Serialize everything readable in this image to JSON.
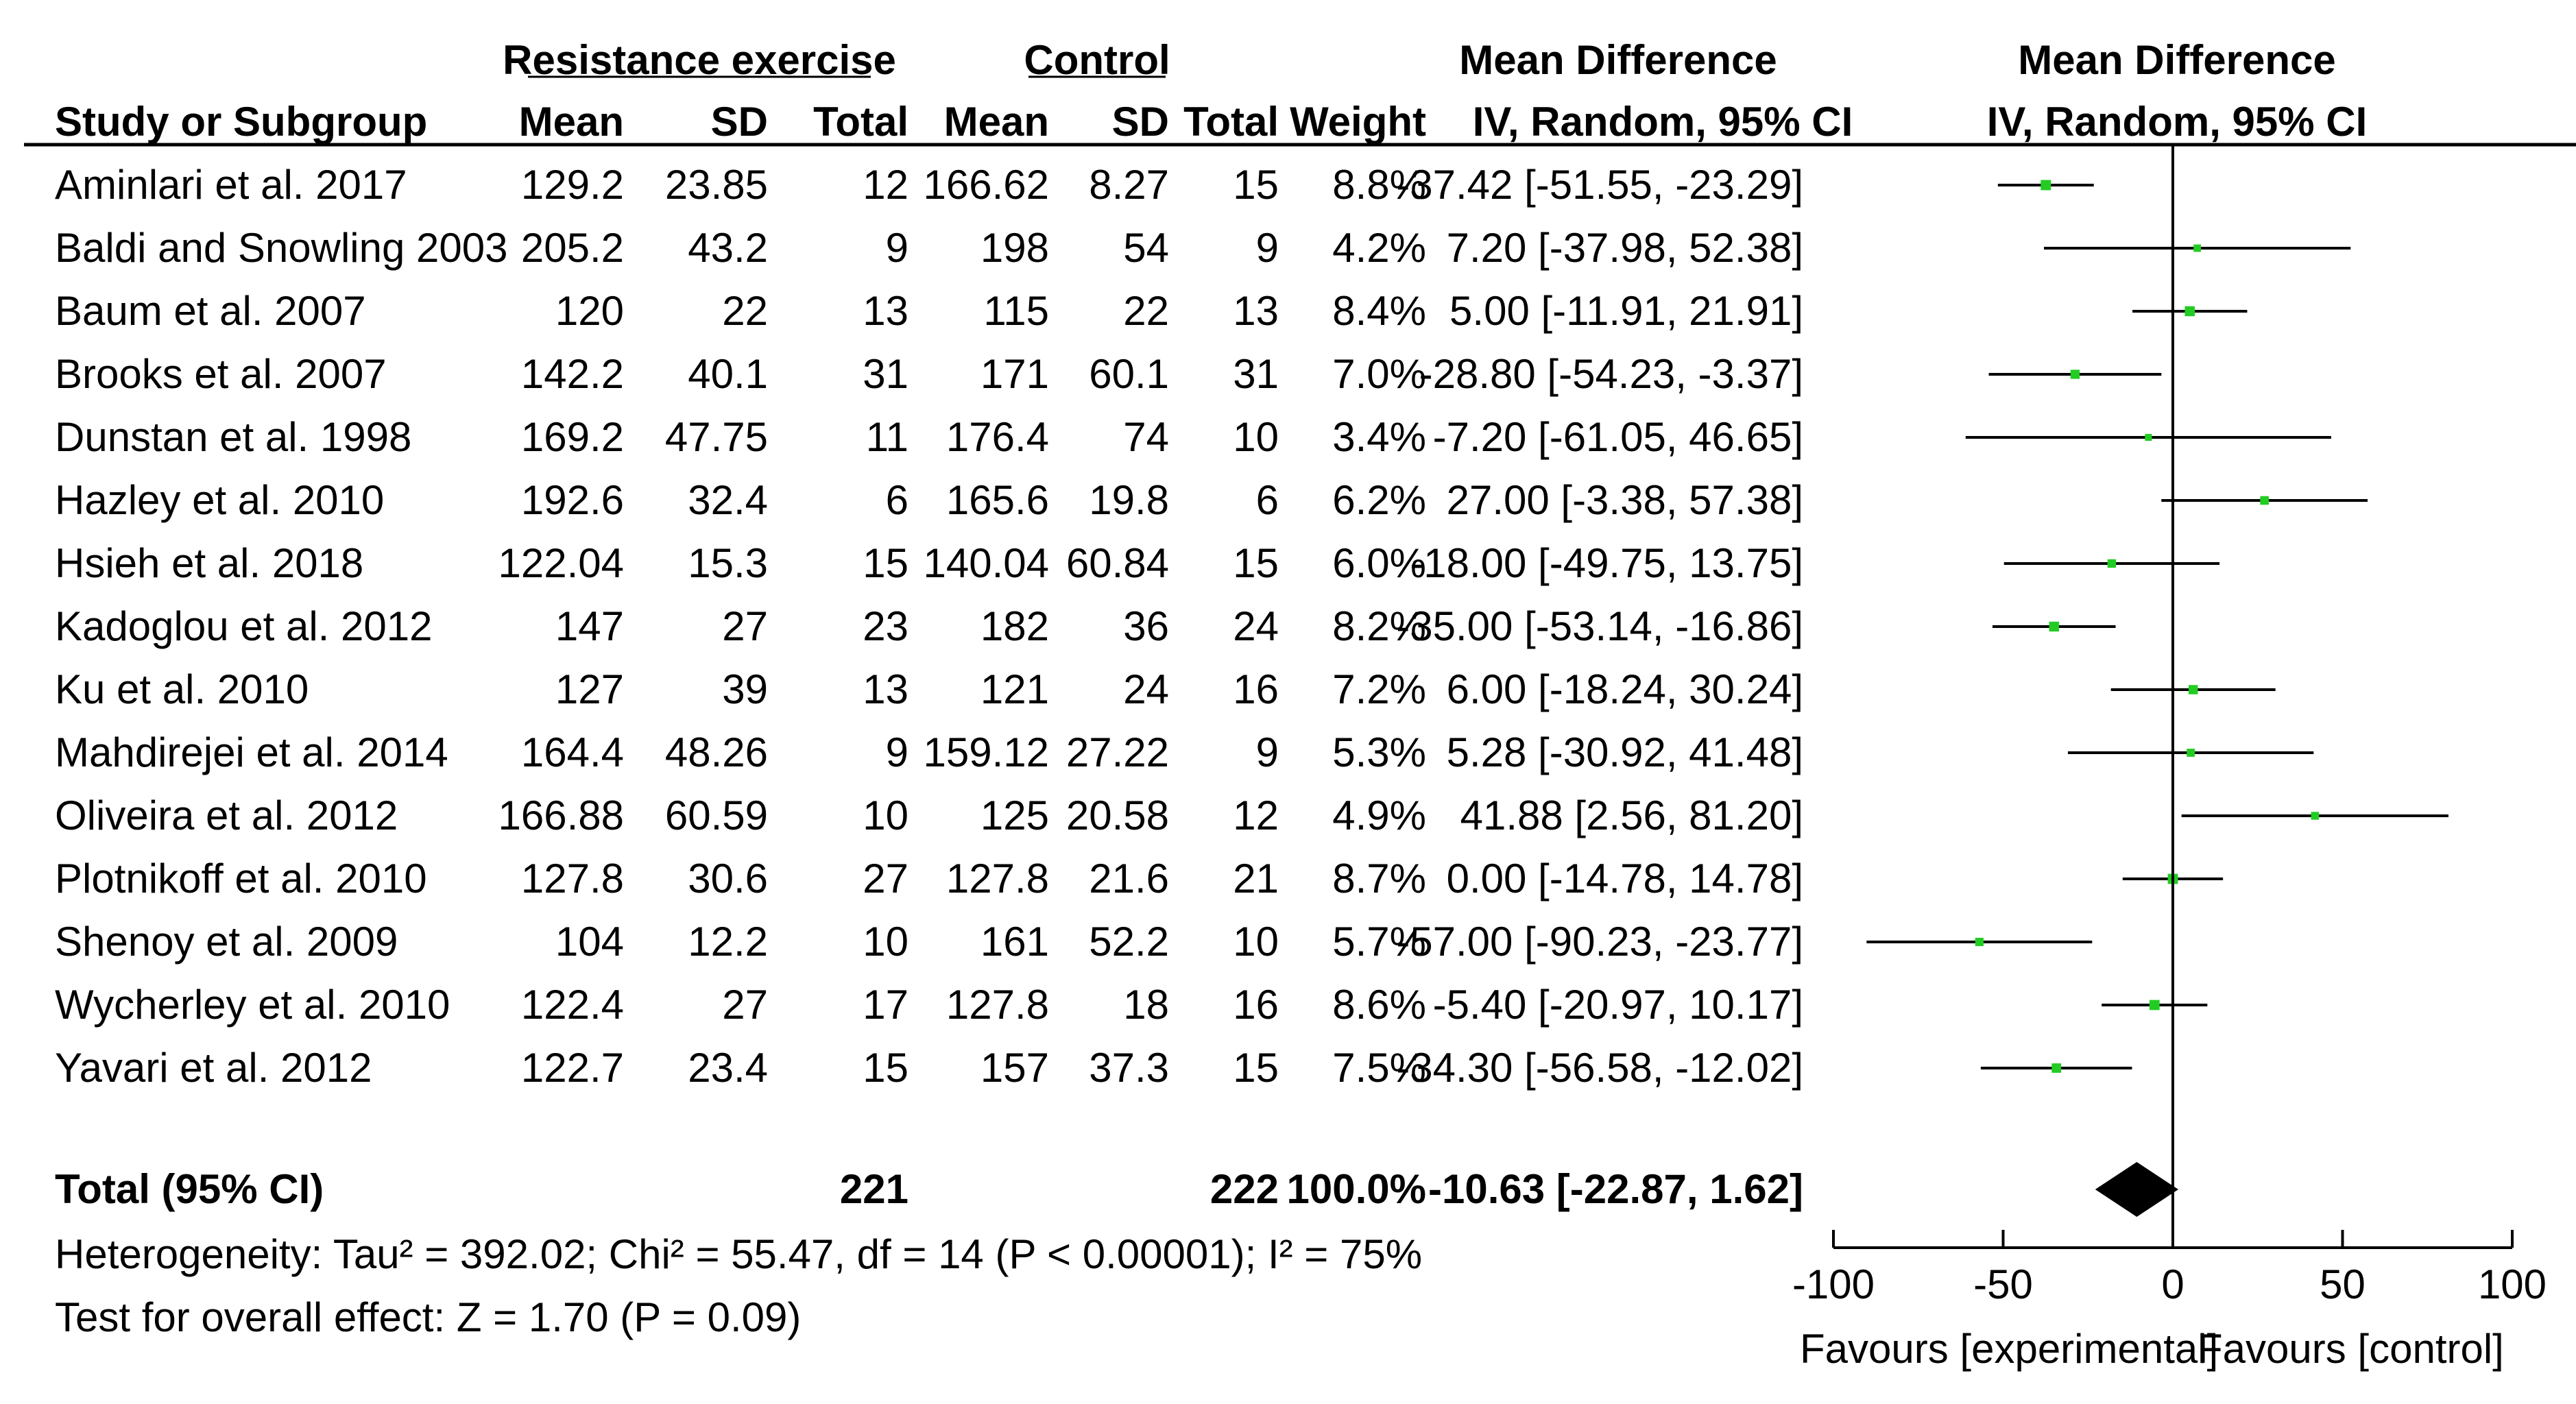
{
  "chart_data": {
    "type": "forest",
    "headers": {
      "group1": "Resistance exercise",
      "group2": "Control",
      "effect_col": "Mean Difference",
      "effect_col_sub": "IV, Random, 95% CI",
      "plot_title": "Mean Difference",
      "plot_sub": "IV, Random, 95% CI",
      "study": "Study or Subgroup",
      "mean": "Mean",
      "sd": "SD",
      "total": "Total",
      "weight": "Weight"
    },
    "studies": [
      {
        "name": "Aminlari et al. 2017",
        "m1": "129.2",
        "sd1": "23.85",
        "n1": "12",
        "m2": "166.62",
        "sd2": "8.27",
        "n2": "15",
        "weight": "8.8%",
        "ci_text": "-37.42 [-51.55, -23.29]",
        "md": -37.42,
        "lo": -51.55,
        "hi": -23.29
      },
      {
        "name": "Baldi and Snowling 2003",
        "m1": "205.2",
        "sd1": "43.2",
        "n1": "9",
        "m2": "198",
        "sd2": "54",
        "n2": "9",
        "weight": "4.2%",
        "ci_text": "7.20 [-37.98, 52.38]",
        "md": 7.2,
        "lo": -37.98,
        "hi": 52.38
      },
      {
        "name": "Baum et al. 2007",
        "m1": "120",
        "sd1": "22",
        "n1": "13",
        "m2": "115",
        "sd2": "22",
        "n2": "13",
        "weight": "8.4%",
        "ci_text": "5.00 [-11.91, 21.91]",
        "md": 5.0,
        "lo": -11.91,
        "hi": 21.91
      },
      {
        "name": "Brooks et al. 2007",
        "m1": "142.2",
        "sd1": "40.1",
        "n1": "31",
        "m2": "171",
        "sd2": "60.1",
        "n2": "31",
        "weight": "7.0%",
        "ci_text": "-28.80 [-54.23, -3.37]",
        "md": -28.8,
        "lo": -54.23,
        "hi": -3.37
      },
      {
        "name": "Dunstan et al. 1998",
        "m1": "169.2",
        "sd1": "47.75",
        "n1": "11",
        "m2": "176.4",
        "sd2": "74",
        "n2": "10",
        "weight": "3.4%",
        "ci_text": "-7.20 [-61.05, 46.65]",
        "md": -7.2,
        "lo": -61.05,
        "hi": 46.65
      },
      {
        "name": "Hazley et al. 2010",
        "m1": "192.6",
        "sd1": "32.4",
        "n1": "6",
        "m2": "165.6",
        "sd2": "19.8",
        "n2": "6",
        "weight": "6.2%",
        "ci_text": "27.00 [-3.38, 57.38]",
        "md": 27.0,
        "lo": -3.38,
        "hi": 57.38
      },
      {
        "name": "Hsieh et al. 2018",
        "m1": "122.04",
        "sd1": "15.3",
        "n1": "15",
        "m2": "140.04",
        "sd2": "60.84",
        "n2": "15",
        "weight": "6.0%",
        "ci_text": "-18.00 [-49.75, 13.75]",
        "md": -18.0,
        "lo": -49.75,
        "hi": 13.75
      },
      {
        "name": "Kadoglou et al. 2012",
        "m1": "147",
        "sd1": "27",
        "n1": "23",
        "m2": "182",
        "sd2": "36",
        "n2": "24",
        "weight": "8.2%",
        "ci_text": "-35.00 [-53.14, -16.86]",
        "md": -35.0,
        "lo": -53.14,
        "hi": -16.86
      },
      {
        "name": "Ku et al. 2010",
        "m1": "127",
        "sd1": "39",
        "n1": "13",
        "m2": "121",
        "sd2": "24",
        "n2": "16",
        "weight": "7.2%",
        "ci_text": "6.00 [-18.24, 30.24]",
        "md": 6.0,
        "lo": -18.24,
        "hi": 30.24
      },
      {
        "name": "Mahdirejei et al. 2014",
        "m1": "164.4",
        "sd1": "48.26",
        "n1": "9",
        "m2": "159.12",
        "sd2": "27.22",
        "n2": "9",
        "weight": "5.3%",
        "ci_text": "5.28 [-30.92, 41.48]",
        "md": 5.28,
        "lo": -30.92,
        "hi": 41.48
      },
      {
        "name": "Oliveira et al. 2012",
        "m1": "166.88",
        "sd1": "60.59",
        "n1": "10",
        "m2": "125",
        "sd2": "20.58",
        "n2": "12",
        "weight": "4.9%",
        "ci_text": "41.88 [2.56, 81.20]",
        "md": 41.88,
        "lo": 2.56,
        "hi": 81.2
      },
      {
        "name": "Plotnikoff et al. 2010",
        "m1": "127.8",
        "sd1": "30.6",
        "n1": "27",
        "m2": "127.8",
        "sd2": "21.6",
        "n2": "21",
        "weight": "8.7%",
        "ci_text": "0.00 [-14.78, 14.78]",
        "md": 0.0,
        "lo": -14.78,
        "hi": 14.78
      },
      {
        "name": "Shenoy et al. 2009",
        "m1": "104",
        "sd1": "12.2",
        "n1": "10",
        "m2": "161",
        "sd2": "52.2",
        "n2": "10",
        "weight": "5.7%",
        "ci_text": "-57.00 [-90.23, -23.77]",
        "md": -57.0,
        "lo": -90.23,
        "hi": -23.77
      },
      {
        "name": "Wycherley et al. 2010",
        "m1": "122.4",
        "sd1": "27",
        "n1": "17",
        "m2": "127.8",
        "sd2": "18",
        "n2": "16",
        "weight": "8.6%",
        "ci_text": "-5.40 [-20.97, 10.17]",
        "md": -5.4,
        "lo": -20.97,
        "hi": 10.17
      },
      {
        "name": "Yavari et al. 2012",
        "m1": "122.7",
        "sd1": "23.4",
        "n1": "15",
        "m2": "157",
        "sd2": "37.3",
        "n2": "15",
        "weight": "7.5%",
        "ci_text": "-34.30 [-56.58, -12.02]",
        "md": -34.3,
        "lo": -56.58,
        "hi": -12.02
      }
    ],
    "total": {
      "label": "Total (95% CI)",
      "n1": "221",
      "n2": "222",
      "weight": "100.0%",
      "ci_text": "-10.63 [-22.87, 1.62]",
      "md": -10.63,
      "lo": -22.87,
      "hi": 1.62
    },
    "heterogeneity": "Heterogeneity: Tau² = 392.02; Chi² = 55.47, df = 14 (P < 0.00001); I² = 75%",
    "overall_test": "Test for overall effect: Z = 1.70 (P = 0.09)",
    "axis": {
      "xlim": [
        -100,
        100
      ],
      "ticks": [
        -100,
        -50,
        0,
        50,
        100
      ],
      "tick_labels": [
        "-100",
        "-50",
        "0",
        "50",
        "100"
      ],
      "favours_left": "Favours [experimental]",
      "favours_right": "Favours [control]"
    },
    "colors": {
      "point": "#22cc22",
      "line": "#000000",
      "diamond": "#000000"
    }
  }
}
